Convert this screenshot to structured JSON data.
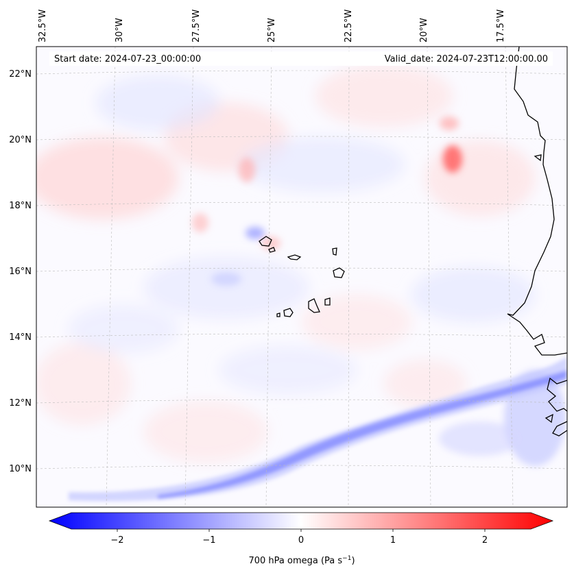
{
  "header": {
    "start_date": "Start date: 2024-07-23_00:00:00",
    "valid_date": "Valid_date: 2024-07-23T12:00:00.00"
  },
  "axes": {
    "lon_labels": [
      "32.5°W",
      "30°W",
      "27.5°W",
      "25°W",
      "22.5°W",
      "20°W",
      "17.5°W"
    ],
    "lat_labels": [
      "22°N",
      "20°N",
      "18°N",
      "16°N",
      "14°N",
      "12°N",
      "10°N"
    ]
  },
  "colorbar": {
    "label": "700 hPa omega (Pa s",
    "label_sup": "−1",
    "label_close": ")",
    "tick_labels": [
      "−2",
      "−1",
      "0",
      "1",
      "2"
    ]
  },
  "map_data": {
    "type": "contourf",
    "variable": "700 hPa omega",
    "units": "Pa s^-1",
    "colormap": "bwr",
    "vmin": -2.5,
    "vmax": 2.5,
    "extend": "both",
    "gridlines": true,
    "lon_range": [
      -32.5,
      -15.5
    ],
    "lat_range": [
      9,
      22.8
    ],
    "colors": {
      "negative": "#0000ff",
      "neutral": "#ffffff",
      "positive": "#ff0000",
      "coastline": "#000000",
      "gridline": "#bbbbbb"
    }
  }
}
